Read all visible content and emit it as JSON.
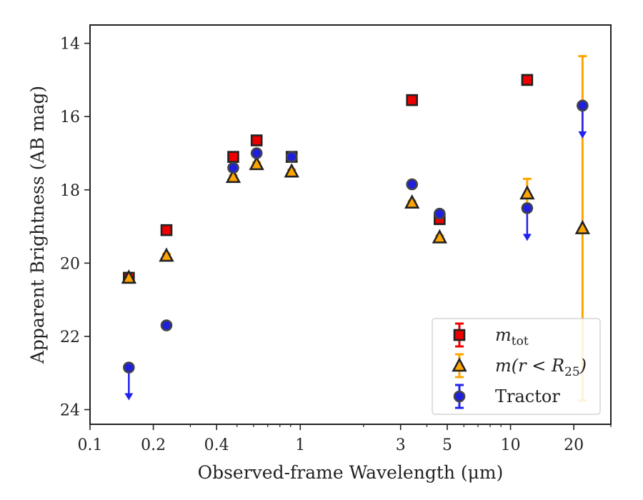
{
  "chart_data": {
    "type": "scatter",
    "title": "",
    "xlabel": "Observed-frame Wavelength (μm)",
    "ylabel": "Apparent Brightness (AB mag)",
    "xscale": "log",
    "xlim": [
      0.1,
      30
    ],
    "ylim": [
      24.4,
      13.5
    ],
    "y_inverted": true,
    "grid": false,
    "legend_position": "lower-right",
    "xticks": [
      {
        "value": 0.1,
        "label": "0.1"
      },
      {
        "value": 0.2,
        "label": "0.2"
      },
      {
        "value": 0.4,
        "label": "0.4"
      },
      {
        "value": 1,
        "label": "1"
      },
      {
        "value": 3,
        "label": "3"
      },
      {
        "value": 5,
        "label": "5"
      },
      {
        "value": 10,
        "label": "10"
      },
      {
        "value": 20,
        "label": "20"
      }
    ],
    "yticks": [
      {
        "value": 14,
        "label": "14"
      },
      {
        "value": 16,
        "label": "16"
      },
      {
        "value": 18,
        "label": "18"
      },
      {
        "value": 20,
        "label": "20"
      },
      {
        "value": 22,
        "label": "22"
      },
      {
        "value": 24,
        "label": "24"
      }
    ],
    "series": [
      {
        "key": "mtot",
        "legend_main": "m",
        "legend_sub": "tot",
        "marker": "square",
        "color": "#ee0000",
        "edge_color": "#222222",
        "errbar_color": "#ee0000",
        "points": [
          {
            "x": 0.153,
            "y": 20.4,
            "err": 0.1
          },
          {
            "x": 0.231,
            "y": 19.1,
            "err": 0.1
          },
          {
            "x": 0.48,
            "y": 17.1,
            "err": 0.05
          },
          {
            "x": 0.62,
            "y": 16.65,
            "err": 0.05
          },
          {
            "x": 0.91,
            "y": 17.1,
            "err": 0.05
          },
          {
            "x": 3.4,
            "y": 15.55,
            "err": 0.05
          },
          {
            "x": 4.6,
            "y": 18.8,
            "err": 0.12
          },
          {
            "x": 12.0,
            "y": 15.0,
            "err": 0.05
          }
        ]
      },
      {
        "key": "mr25",
        "legend_main": "m(r < R",
        "legend_sub": "25",
        "legend_after": ")",
        "marker": "triangle",
        "color": "#ffa500",
        "edge_color": "#222222",
        "errbar_color": "#ffa500",
        "points": [
          {
            "x": 0.153,
            "y": 20.4,
            "err": 0.05
          },
          {
            "x": 0.231,
            "y": 19.8,
            "err": 0.05
          },
          {
            "x": 0.48,
            "y": 17.65,
            "err": 0.05
          },
          {
            "x": 0.62,
            "y": 17.3,
            "err": 0.05
          },
          {
            "x": 0.91,
            "y": 17.5,
            "err": 0.05
          },
          {
            "x": 3.4,
            "y": 18.35,
            "err": 0.05
          },
          {
            "x": 4.6,
            "y": 19.3,
            "err": 0.05
          },
          {
            "x": 12.0,
            "y": 18.1,
            "err": 0.4
          },
          {
            "x": 22.0,
            "y": 19.05,
            "err": 4.7
          }
        ]
      },
      {
        "key": "tractor",
        "legend_main": "Tractor",
        "marker": "circle",
        "color": "#1f1fdd",
        "edge_color": "#444444",
        "errbar_color": "#2222ee",
        "points": [
          {
            "x": 0.153,
            "y": 22.85,
            "upper_limit": true
          },
          {
            "x": 0.231,
            "y": 21.7,
            "err": 0.05
          },
          {
            "x": 0.48,
            "y": 17.4,
            "err": 0.05
          },
          {
            "x": 0.62,
            "y": 17.0,
            "err": 0.05
          },
          {
            "x": 0.91,
            "y": 17.1,
            "err": 0.05
          },
          {
            "x": 3.4,
            "y": 17.85,
            "err": 0.05
          },
          {
            "x": 4.6,
            "y": 18.65,
            "err": 0.05
          },
          {
            "x": 12.0,
            "y": 18.5,
            "upper_limit": true
          },
          {
            "x": 22.0,
            "y": 15.7,
            "upper_limit": true
          }
        ]
      }
    ]
  }
}
